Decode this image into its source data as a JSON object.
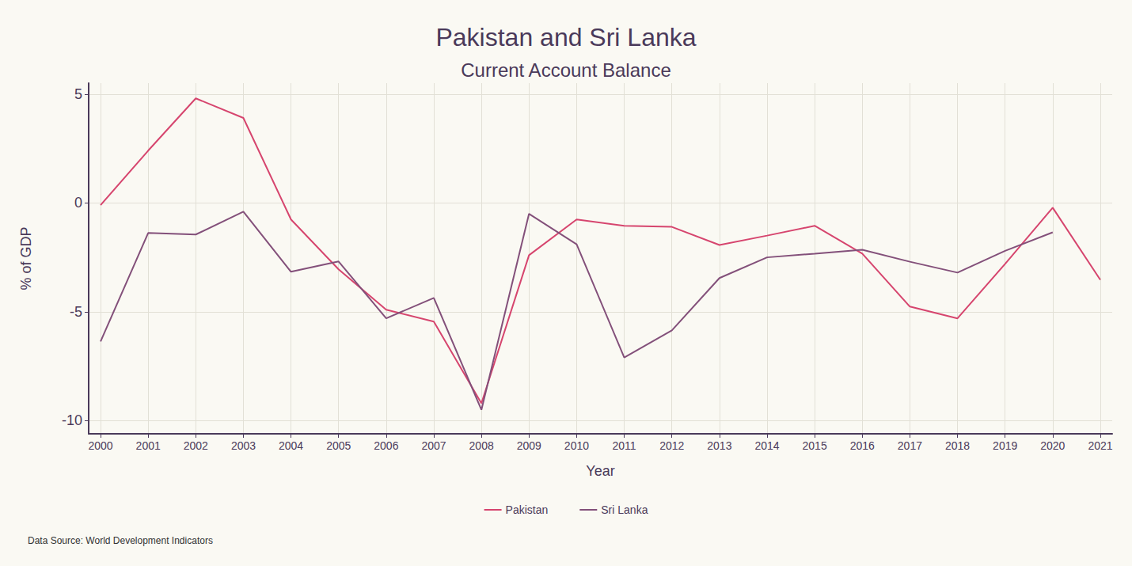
{
  "chart_data": {
    "type": "line",
    "title": "Pakistan and Sri Lanka",
    "subtitle": "Current Account Balance",
    "x_label": "Year",
    "y_label": "% of GDP",
    "source": "Data Source: World Development Indicators",
    "x": [
      2000,
      2001,
      2002,
      2003,
      2004,
      2005,
      2006,
      2007,
      2008,
      2009,
      2010,
      2011,
      2012,
      2013,
      2014,
      2015,
      2016,
      2017,
      2018,
      2019,
      2020,
      2021
    ],
    "series": [
      {
        "name": "Pakistan",
        "color": "#d6456e",
        "values": [
          -0.1,
          2.4,
          4.8,
          3.9,
          -0.76,
          -3.05,
          -4.9,
          -5.45,
          -9.2,
          -2.4,
          -0.76,
          -1.05,
          -1.1,
          -1.93,
          -1.5,
          -1.05,
          -2.33,
          -4.76,
          -5.3,
          -2.8,
          -0.22,
          -3.53
        ]
      },
      {
        "name": "Sri Lanka",
        "color": "#83507a",
        "values": [
          -6.36,
          -1.38,
          -1.45,
          -0.4,
          -3.16,
          -2.69,
          -5.3,
          -4.36,
          -9.5,
          -0.5,
          -1.9,
          -7.1,
          -5.85,
          -3.45,
          -2.5,
          -2.33,
          -2.15,
          -2.7,
          -3.2,
          -2.2,
          -1.35,
          null
        ]
      }
    ],
    "xlim": [
      1999.75,
      2021.25
    ],
    "xticks": [
      2000,
      2001,
      2002,
      2003,
      2004,
      2005,
      2006,
      2007,
      2008,
      2009,
      2010,
      2011,
      2012,
      2013,
      2014,
      2015,
      2016,
      2017,
      2018,
      2019,
      2020,
      2021
    ],
    "ylim": [
      -10.6,
      5.5
    ],
    "yticks": [
      -10,
      -5,
      0,
      5
    ],
    "grid": true,
    "legend": "bottom"
  }
}
